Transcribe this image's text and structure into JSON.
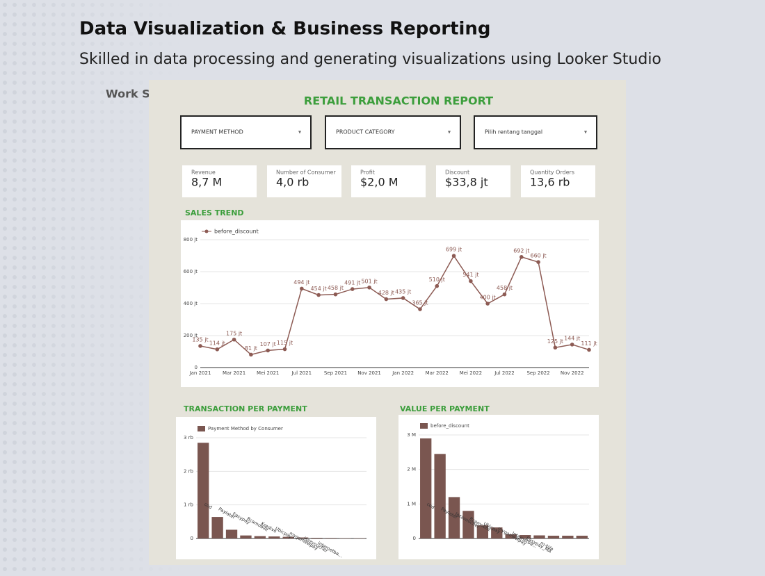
{
  "header": {
    "title": "Data Visualization & Business Reporting",
    "subtitle": "Skilled in data processing and generating visualizations using Looker Studio",
    "section": "Work Samples"
  },
  "dashboard": {
    "title": "RETAIL TRANSACTION REPORT",
    "filters": [
      "PAYMENT METHOD",
      "PRODUCT CATEGORY",
      "Pilih rentang tanggal"
    ],
    "kpis": [
      {
        "label": "Revenue",
        "value": "8,7 M"
      },
      {
        "label": "Number of Consumer",
        "value": "4,0 rb"
      },
      {
        "label": "Profit",
        "value": "$2,0 M"
      },
      {
        "label": "Discount",
        "value": "$33,8 jt"
      },
      {
        "label": "Quantity Orders",
        "value": "13,6 rb"
      }
    ]
  },
  "chart_data": [
    {
      "type": "line",
      "title": "SALES TREND",
      "categories": [
        "Jan 2021",
        null,
        "Mar 2021",
        null,
        "Mei 2021",
        null,
        "Jul 2021",
        null,
        "Sep 2021",
        null,
        "Nov 2021",
        null,
        "Jan 2022",
        null,
        "Mar 2022",
        null,
        "Mei 2022",
        null,
        "Jul 2022",
        null,
        "Sep 2022",
        null,
        "Nov 2022",
        null
      ],
      "series": [
        {
          "name": "before_discount",
          "color": "#8d5b54",
          "values": [
            135,
            114,
            175,
            81,
            107,
            115,
            494,
            454,
            458,
            491,
            501,
            428,
            435,
            365,
            510,
            699,
            541,
            400,
            458,
            692,
            660,
            125,
            144,
            111
          ],
          "value_labels": [
            "135 jt",
            "114 jt",
            "175 jt",
            "81 jt",
            "107 jt",
            "115 jt",
            "494 jt",
            "454 jt",
            "458 jt",
            "491 jt",
            "501 jt",
            "428 jt",
            "435 jt",
            "365 jt",
            "510 jt",
            "699 jt",
            "541 jt",
            "400 jt",
            "458 jt",
            "692 jt",
            "660 jt",
            "125 jt",
            "144 jt",
            "111 jt"
          ]
        }
      ],
      "ylim": [
        0,
        800
      ],
      "yticks": [
        0,
        {
          "value": 200,
          "label": "200 jt"
        },
        {
          "value": 400,
          "label": "400 jt"
        },
        {
          "value": 600,
          "label": "600 jt"
        },
        {
          "value": 800,
          "label": "800 jt"
        }
      ],
      "grid": true
    },
    {
      "type": "bar",
      "title": "TRANSACTION PER PAYMENT",
      "categories": [
        "cod",
        "Paylater",
        "Easypay",
        "Bcamobile",
        "Kredivo",
        "Ubicpay",
        "mygamewpay",
        "jazzvoucher",
        "internetba...",
        null,
        null,
        null
      ],
      "series": [
        {
          "name": "Payment Method by Consumer",
          "color": "#7a5650",
          "values": [
            2.85,
            0.64,
            0.26,
            0.09,
            0.07,
            0.06,
            0.05,
            0.03,
            0.02,
            0.015,
            0.01,
            0.01
          ]
        }
      ],
      "ylim": [
        0,
        3
      ],
      "yticks": [
        0,
        {
          "value": 1,
          "label": "1 rb"
        },
        {
          "value": 2,
          "label": "2 rb"
        },
        {
          "value": 3,
          "label": "3 rb"
        }
      ],
      "grid": true
    },
    {
      "type": "bar",
      "title": "VALUE PER PAYMENT",
      "categories": [
        "cod",
        "Paylater",
        "Jazzvoucher",
        "Bcamobile",
        "Ubicpay",
        "mygamewpay",
        "Internetba...",
        "Easypay_MA",
        "m-bile",
        null,
        null,
        null
      ],
      "series": [
        {
          "name": "before_discount",
          "color": "#7a5650",
          "values": [
            2.9,
            2.45,
            1.2,
            0.8,
            0.38,
            0.32,
            0.12,
            0.1,
            0.09,
            0.08,
            0.08,
            0.08
          ]
        }
      ],
      "ylim": [
        0,
        3
      ],
      "yticks": [
        0,
        {
          "value": 1,
          "label": "1 M"
        },
        {
          "value": 2,
          "label": "2 M"
        },
        {
          "value": 3,
          "label": "3 M"
        }
      ],
      "grid": true
    }
  ]
}
